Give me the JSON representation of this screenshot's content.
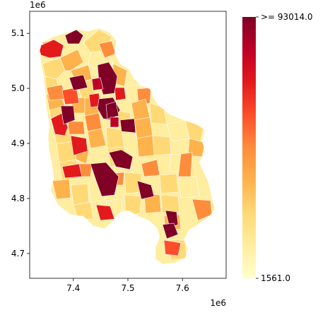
{
  "map": {
    "x_offset_label": "1e6",
    "y_offset_label": "1e6",
    "x_ticks": [
      {
        "value": 7.4,
        "label": "7.4"
      },
      {
        "value": 7.5,
        "label": "7.5"
      },
      {
        "value": 7.6,
        "label": "7.6"
      }
    ],
    "y_ticks": [
      {
        "value": 5.1,
        "label": "5.1"
      },
      {
        "value": 5.0,
        "label": "5.0"
      },
      {
        "value": 4.9,
        "label": "4.9"
      },
      {
        "value": 4.8,
        "label": "4.8"
      },
      {
        "value": 4.7,
        "label": "4.7"
      }
    ],
    "x_range": [
      7.32,
      7.68
    ],
    "y_range": [
      4.655,
      5.14
    ]
  },
  "colorbar": {
    "colormap": "YlOrRd",
    "max_label": ">= 93014.0",
    "min_label": "1561.0",
    "max_value": 93014.0,
    "min_value": 1561.0,
    "stops": [
      "#ffffcc",
      "#ffeda0",
      "#fed976",
      "#feb24c",
      "#fd8d3c",
      "#fc4e2a",
      "#e31a1c",
      "#bd0026",
      "#800026"
    ]
  },
  "regions_by_color": {
    "#800026": 14,
    "#e31a1c": 10,
    "#fc4e2a": 7,
    "#fd8d3c": 14,
    "#feb24c": 30,
    "#fed976": 28,
    "#ffeda0": 32
  }
}
